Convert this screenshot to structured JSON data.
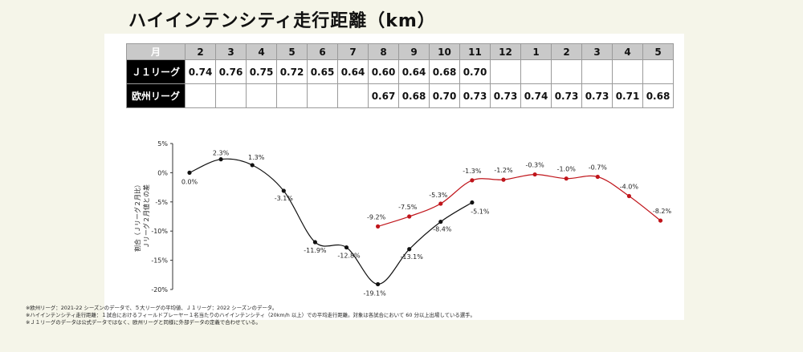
{
  "title": "ハイインテンシティ走行距離（km）",
  "table": {
    "header_label": "月",
    "months": [
      "2",
      "3",
      "4",
      "5",
      "6",
      "7",
      "8",
      "9",
      "10",
      "11",
      "12",
      "1",
      "2",
      "3",
      "4",
      "5"
    ],
    "rows": [
      {
        "label": "Ｊ１リーグ",
        "values": [
          "0.74",
          "0.76",
          "0.75",
          "0.72",
          "0.65",
          "0.64",
          "0.60",
          "0.64",
          "0.68",
          "0.70",
          "",
          "",
          "",
          "",
          "",
          ""
        ]
      },
      {
        "label": "欧州リーグ",
        "values": [
          "",
          "",
          "",
          "",
          "",
          "",
          "0.67",
          "0.68",
          "0.70",
          "0.73",
          "0.73",
          "0.74",
          "0.73",
          "0.73",
          "0.71",
          "0.68"
        ]
      }
    ]
  },
  "chart_data": {
    "type": "line",
    "ylabel": "割合（Ｊリーグ２月比）\nＪリーグ２月値との差",
    "ylim": [
      -20,
      5
    ],
    "yticks": [
      "5%",
      "0%",
      "-5%",
      "-10%",
      "-15%",
      "-20%"
    ],
    "x": [
      "2",
      "3",
      "4",
      "5",
      "6",
      "7",
      "8",
      "9",
      "10",
      "11",
      "12",
      "1",
      "2",
      "3",
      "4",
      "5"
    ],
    "grid": false,
    "series": [
      {
        "color": "#111111",
        "values": [
          0.0,
          2.3,
          1.3,
          -3.1,
          -11.9,
          -12.8,
          -19.1,
          -13.1,
          -8.4,
          -5.1,
          null,
          null,
          null,
          null,
          null,
          null
        ],
        "labels": [
          "0.0%",
          "2.3%",
          "1.3%",
          "-3.1%",
          "-11.9%",
          "-12.8%",
          "-19.1%",
          "-13.1%",
          "-8.4%",
          "-5.1%",
          "",
          "",
          "",
          "",
          "",
          ""
        ]
      },
      {
        "color": "#c0151b",
        "values": [
          null,
          null,
          null,
          null,
          null,
          null,
          -9.2,
          -7.5,
          -5.3,
          -1.3,
          -1.2,
          -0.3,
          -1.0,
          -0.7,
          -4.0,
          -8.2
        ],
        "labels": [
          "",
          "",
          "",
          "",
          "",
          "",
          "-9.2%",
          "-7.5%",
          "-5.3%",
          "-1.3%",
          "-1.2%",
          "-0.3%",
          "-1.0%",
          "-0.7%",
          "-4.0%",
          "-8.2%"
        ]
      }
    ]
  },
  "notes": [
    "※欧州リーグ：2021-22 シーズンのデータで、５大リーグの平均値、Ｊ１リーグ：2022 シーズンのデータ。",
    "※ハイインテンシティ走行距離：１試合におけるフィールドプレーヤー１名当たりのハイインテンシティ（20km/h 以上）での平均走行距離。対象は各試合において 60 分以上出場している選手。",
    "※Ｊ１リーグのデータは公式データではなく、欧州リーグと同様に外部データの定義で合わせている。"
  ]
}
